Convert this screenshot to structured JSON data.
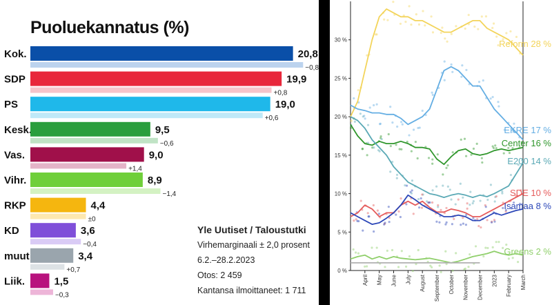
{
  "left_chart_title": "Puoluekannatus (%)",
  "source": {
    "title": "Yle Uutiset / Taloustutki",
    "lines": [
      "Virhemarginaali ± 2,0 prosent",
      "6.2.–28.2.2023",
      "Otos: 2 459",
      "Kantansa ilmoittaneet: 1 711"
    ]
  },
  "chart_data": [
    {
      "type": "bar",
      "title": "Puoluekannatus (%)",
      "orientation": "horizontal",
      "xlim": [
        0,
        21.5
      ],
      "categories": [
        "Kok.",
        "SDP",
        "PS",
        "Kesk.",
        "Vas.",
        "Vihr.",
        "RKP",
        "KD",
        "muut",
        "Liik."
      ],
      "value_labels": [
        "20,8",
        "19,9",
        "19,0",
        "9,5",
        "9,0",
        "8,9",
        "4,4",
        "3,6",
        "3,4",
        "1,5"
      ],
      "change_labels": [
        "−0,8",
        "+0,8",
        "+0,6",
        "−0,6",
        "+1,4",
        "−1,4",
        "±0",
        "−0,4",
        "+0,7",
        "−0,3"
      ],
      "series": [
        {
          "values": [
            20.8,
            19.9,
            19.0,
            9.5,
            9.0,
            8.9,
            4.4,
            3.6,
            3.4,
            1.5
          ]
        },
        {
          "values": [
            21.6,
            19.1,
            18.4,
            10.1,
            7.6,
            10.3,
            4.4,
            4.0,
            2.7,
            1.8
          ]
        }
      ],
      "colors": [
        "#0a4fa8",
        "#e8273b",
        "#1fb8ea",
        "#2a9e3d",
        "#a0104a",
        "#6fcf3a",
        "#f5b60f",
        "#7f4fd9",
        "#9aa5ad",
        "#b8127d"
      ],
      "light_colors": [
        "#bcd3ee",
        "#f6c4ca",
        "#bfe9f8",
        "#c0e3c5",
        "#e4b4c8",
        "#d4f2c3",
        "#fde8b0",
        "#d9cbf5",
        "#dde2e5",
        "#edb5d8"
      ]
    },
    {
      "type": "line",
      "xlabel": "",
      "ylabel": "",
      "ylim": [
        0,
        35
      ],
      "yticks": [
        0,
        5,
        10,
        15,
        20,
        25,
        30
      ],
      "ytick_labels": [
        "0 %",
        "5 %",
        "10 %",
        "15 %",
        "20 %",
        "25 %",
        "30 %"
      ],
      "x_tick_labels": [
        "April",
        "May",
        "June",
        "July",
        "August",
        "September",
        "October",
        "November",
        "December",
        "2023",
        "February",
        "March"
      ],
      "x_range_months": [
        0,
        12
      ],
      "series": [
        {
          "name": "Reform",
          "end_label": "Reform  28 %",
          "color": "#f3d45a",
          "months": [
            0,
            0.5,
            1,
            1.5,
            2,
            2.5,
            3,
            3.5,
            4,
            4.5,
            5,
            5.5,
            6,
            6.5,
            7,
            7.5,
            8,
            8.5,
            9,
            9.5,
            10,
            10.5,
            11,
            11.5,
            12
          ],
          "values": [
            20,
            22,
            26,
            30,
            33,
            34,
            33.5,
            33,
            33,
            32.5,
            32.5,
            32,
            31.5,
            31,
            31,
            31.5,
            32,
            32.5,
            32.5,
            31.5,
            31,
            30.5,
            30,
            29,
            28
          ]
        },
        {
          "name": "EKRE",
          "end_label": "EKRE  17 %",
          "color": "#64aee3",
          "months": [
            0,
            0.5,
            1,
            1.5,
            2,
            2.5,
            3,
            3.5,
            4,
            4.5,
            5,
            5.5,
            6,
            6.5,
            7,
            7.5,
            8,
            8.5,
            9,
            9.5,
            10,
            10.5,
            11,
            11.5,
            12
          ],
          "values": [
            21.5,
            21,
            20.8,
            20.5,
            20.5,
            20.3,
            20.3,
            19.8,
            19,
            19.5,
            20,
            21,
            23.5,
            26,
            26.5,
            26,
            25,
            24,
            24,
            22.5,
            21,
            20,
            19,
            18,
            17
          ]
        },
        {
          "name": "Center",
          "end_label": "Center  16 %",
          "color": "#2f962b",
          "months": [
            0,
            0.5,
            1,
            1.5,
            2,
            2.5,
            3,
            3.5,
            4,
            4.5,
            5,
            5.5,
            6,
            6.5,
            7,
            7.5,
            8,
            8.5,
            9,
            9.5,
            10,
            10.5,
            11,
            11.5,
            12
          ],
          "values": [
            19,
            17.5,
            16.5,
            16.3,
            16.8,
            16.5,
            16.5,
            16.8,
            16.5,
            16,
            16,
            15.8,
            14.5,
            13.8,
            14.8,
            15.6,
            15.8,
            15.2,
            15,
            15.2,
            15.6,
            15.8,
            15.6,
            15.8,
            16
          ]
        },
        {
          "name": "E200",
          "end_label": "E200  14 %",
          "color": "#5aa9b5",
          "months": [
            0,
            0.5,
            1,
            1.5,
            2,
            2.5,
            3,
            3.5,
            4,
            4.5,
            5,
            5.5,
            6,
            6.5,
            7,
            7.5,
            8,
            8.5,
            9,
            9.5,
            10,
            10.5,
            11,
            11.5,
            12
          ],
          "values": [
            20,
            19.5,
            18.5,
            17,
            16,
            15,
            13.5,
            12.5,
            11.5,
            11,
            10.5,
            10,
            9.8,
            9.5,
            9.8,
            10,
            9.8,
            9.5,
            9.8,
            9.6,
            10,
            10.5,
            11,
            12.5,
            14
          ]
        },
        {
          "name": "SDE",
          "end_label": "SDE  10 %",
          "color": "#e55b5b",
          "months": [
            0,
            0.5,
            1,
            1.5,
            2,
            2.5,
            3,
            3.5,
            4,
            4.5,
            5,
            5.5,
            6,
            6.5,
            7,
            7.5,
            8,
            8.5,
            9,
            9.5,
            10,
            10.5,
            11,
            11.5,
            12
          ],
          "values": [
            7,
            7.5,
            8.5,
            8,
            7,
            7.5,
            7.5,
            8.5,
            9,
            8.5,
            9,
            8.2,
            7.6,
            7.6,
            8,
            7.8,
            7.5,
            7,
            7,
            7.5,
            8,
            8.5,
            9,
            9.5,
            10
          ]
        },
        {
          "name": "Isamaa",
          "end_label": "Isamaa  8 %",
          "color": "#2c47b8",
          "months": [
            0,
            0.5,
            1,
            1.5,
            2,
            2.5,
            3,
            3.5,
            4,
            4.5,
            5,
            5.5,
            6,
            6.5,
            7,
            7.5,
            8,
            8.5,
            9,
            9.5,
            10,
            10.5,
            11,
            11.5,
            12
          ],
          "values": [
            7.5,
            7,
            6.5,
            6,
            6.2,
            6.8,
            7.5,
            8.5,
            9.8,
            9.2,
            8.5,
            8,
            7.5,
            7,
            7,
            7.2,
            7,
            6.5,
            6.5,
            7,
            7.5,
            7.2,
            7.5,
            7.8,
            8
          ]
        },
        {
          "name": "Greens",
          "end_label": "Greens  2 %",
          "color": "#8fcf6a",
          "months": [
            0,
            0.5,
            1,
            1.5,
            2,
            2.5,
            3,
            3.5,
            4,
            4.5,
            5,
            5.5,
            6,
            6.5,
            7,
            7.5,
            8,
            8.5,
            9,
            9.5,
            10,
            10.5,
            11,
            11.5,
            12
          ],
          "values": [
            1.5,
            1.8,
            2,
            1.5,
            1.8,
            1.5,
            1.8,
            1.6,
            1.5,
            1.4,
            1.5,
            1.6,
            1.4,
            1.2,
            1,
            1.2,
            1.5,
            1.8,
            2,
            2.2,
            2.5,
            2.2,
            2,
            2.2,
            2
          ]
        },
        {
          "name": "",
          "end_label": "",
          "color": "#b0b0b0",
          "months": [
            0,
            3,
            6,
            9
          ],
          "values": [
            1,
            1,
            1,
            1
          ]
        }
      ]
    }
  ]
}
